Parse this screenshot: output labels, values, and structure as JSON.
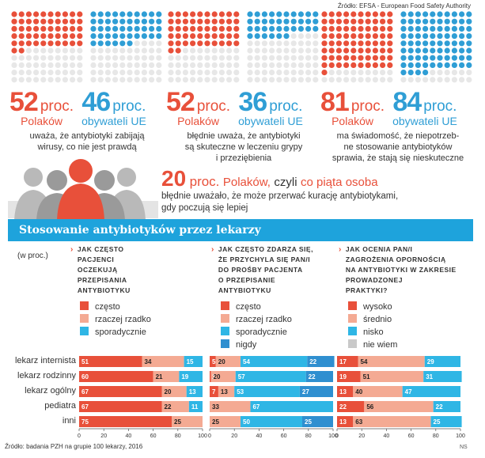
{
  "source_top": "Źródło: EFSA - European Food Safety Authority",
  "source_bottom": "Źródło: badania PZH na grupie 100 lekarzy, 2016",
  "credit": "NS",
  "colors": {
    "red": "#e8503a",
    "blue": "#2f9ed5",
    "pale": "#e7e7e7",
    "salmon": "#f4aa93",
    "lightblue": "#2fb6e5",
    "grey": "#d3d3d3",
    "lightgrey": "#e8e8e8",
    "banner": "#1ea3dc"
  },
  "stats": [
    {
      "pl_value": "52",
      "pl_unit": "proc.",
      "pl_label": "Polaków",
      "eu_value": "46",
      "eu_unit": "proc.",
      "eu_label": "obywateli UE",
      "desc1": "uważa, że antybiotyki zabijają",
      "desc2": "wirusy, co nie jest prawdą",
      "desc3": ""
    },
    {
      "pl_value": "52",
      "pl_unit": "proc.",
      "pl_label": "Polaków",
      "eu_value": "36",
      "eu_unit": "proc.",
      "eu_label": "obywateli UE",
      "desc1": "błędnie uważa, że antybiotyki",
      "desc2": "są skuteczne w leczeniu grypy",
      "desc3": "i przeziębienia"
    },
    {
      "pl_value": "81",
      "pl_unit": "proc.",
      "pl_label": "Polaków",
      "eu_value": "84",
      "eu_unit": "proc.",
      "eu_label": "obywateli UE",
      "desc1": "ma świadomość, że niepotrzeb-",
      "desc2": "ne stosowanie antybiotyków",
      "desc3": "sprawia, że stają się nieskuteczne"
    }
  ],
  "dot_grids": [
    {
      "red_count": 52,
      "blue_count": 46
    },
    {
      "red_count": 52,
      "blue_count": 36
    },
    {
      "red_count": 81,
      "blue_count": 84
    }
  ],
  "fifth": {
    "value": "20",
    "unit": "proc.",
    "label": "Polaków,",
    "text_a": "czyli",
    "text_b": "co piąta osoba",
    "line2": "błędnie uważało, że może przerwać kurację antybiotykami,",
    "line3": "gdy poczują się lepiej"
  },
  "banner_title": "Stosowanie antybiotyków przez lekarzy",
  "unit_note": "(w proc.)",
  "row_labels": [
    "lekarz internista",
    "lekarz rodzinny",
    "lekarz ogólny",
    "pediatra",
    "inni"
  ],
  "axis_ticks": [
    "0",
    "20",
    "40",
    "60",
    "80",
    "100"
  ],
  "chart_data": [
    {
      "type": "bar",
      "stacked": true,
      "orientation": "horizontal",
      "xlim": [
        0,
        100
      ],
      "title": "Jak często pacjenci oczekują przepisania antybiotyku",
      "title_lines": [
        "Jak często",
        "pacjenci",
        "oczekują",
        "przepisania",
        "antybiotyku"
      ],
      "categories": [
        "lekarz internista",
        "lekarz rodzinny",
        "lekarz ogólny",
        "pediatra",
        "inni"
      ],
      "series": [
        {
          "name": "często",
          "color": "#e8503a",
          "values": [
            51,
            60,
            67,
            67,
            75
          ]
        },
        {
          "name": "rzaczej rzadko",
          "color": "#f4aa93",
          "values": [
            34,
            21,
            20,
            22,
            25
          ]
        },
        {
          "name": "sporadycznie",
          "color": "#2fb6e5",
          "values": [
            15,
            19,
            13,
            11,
            0
          ]
        }
      ],
      "labels": [
        [
          "51",
          "34",
          "15"
        ],
        [
          "60",
          "21",
          "19"
        ],
        [
          "67",
          "20",
          "13"
        ],
        [
          "67",
          "22",
          "11"
        ],
        [
          "75",
          "25",
          ""
        ]
      ]
    },
    {
      "type": "bar",
      "stacked": true,
      "orientation": "horizontal",
      "xlim": [
        0,
        100
      ],
      "title": "Jak często zdarza się, że przychyla się Pan/i do prośby pacjenta o przepisanie antybiotyku",
      "title_lines": [
        "Jak często zdarza się,",
        "że przychyla się Pan/i",
        "do prośby pacjenta",
        "o przepisanie",
        "antybiotyku"
      ],
      "categories": [
        "lekarz internista",
        "lekarz rodzinny",
        "lekarz ogólny",
        "pediatra",
        "inni"
      ],
      "series": [
        {
          "name": "często",
          "color": "#e8503a",
          "values": [
            5,
            1,
            7,
            0,
            0
          ]
        },
        {
          "name": "rzaczej rzadko",
          "color": "#f4aa93",
          "values": [
            20,
            20,
            13,
            33,
            25
          ]
        },
        {
          "name": "sporadycznie",
          "color": "#2fb6e5",
          "values": [
            54,
            57,
            53,
            67,
            50
          ]
        },
        {
          "name": "nigdy",
          "color": "#2f8fd0",
          "values": [
            22,
            22,
            27,
            0,
            25
          ]
        }
      ],
      "labels": [
        [
          "5",
          "20",
          "54",
          "22"
        ],
        [
          "1",
          "20",
          "57",
          "22"
        ],
        [
          "7",
          "13",
          "53",
          "27"
        ],
        [
          "",
          "33",
          "67",
          ""
        ],
        [
          "",
          "25",
          "50",
          "25"
        ]
      ]
    },
    {
      "type": "bar",
      "stacked": true,
      "orientation": "horizontal",
      "xlim": [
        0,
        100
      ],
      "title": "Jak ocenia Pan/i zagrożenia opornością na antybiotyki w zakresie prowadzonej praktyki?",
      "title_lines": [
        "Jak ocenia Pan/i",
        "zagrożenia opornością",
        "na antybiotyki w zakresie",
        "prowadzonej",
        "praktyki?"
      ],
      "categories": [
        "lekarz internista",
        "lekarz rodzinny",
        "lekarz ogólny",
        "pediatra",
        "inni"
      ],
      "series": [
        {
          "name": "wysoko",
          "color": "#e8503a",
          "values": [
            17,
            19,
            13,
            22,
            13
          ]
        },
        {
          "name": "średnio",
          "color": "#f4aa93",
          "values": [
            54,
            51,
            40,
            56,
            63
          ]
        },
        {
          "name": "nisko",
          "color": "#2fb6e5",
          "values": [
            29,
            31,
            47,
            22,
            25
          ]
        },
        {
          "name": "nie wiem",
          "color": "#c9c9c9",
          "values": [
            0,
            0,
            0,
            0,
            0
          ]
        }
      ],
      "labels": [
        [
          "17",
          "54",
          "29"
        ],
        [
          "19",
          "51",
          "31"
        ],
        [
          "13",
          "40",
          "47"
        ],
        [
          "22",
          "56",
          "22"
        ],
        [
          "13",
          "63",
          "25"
        ]
      ]
    }
  ]
}
